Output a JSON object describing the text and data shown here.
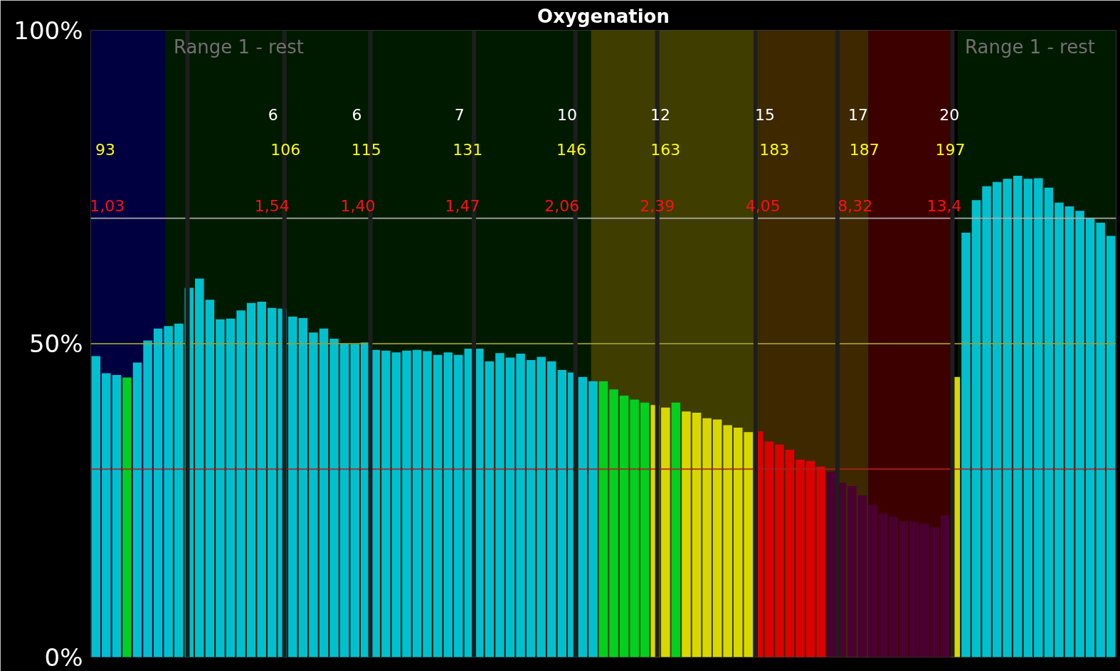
{
  "chart_data": {
    "type": "bar",
    "title": "Oxygenation",
    "categories": [
      null,
      null,
      null,
      null,
      null,
      null,
      null,
      null,
      null,
      null,
      null,
      null,
      null,
      null,
      null,
      null,
      null,
      null,
      null,
      null,
      null,
      null,
      null,
      null,
      null,
      null,
      null,
      null,
      null,
      null,
      null,
      null,
      null,
      null,
      null,
      null,
      null,
      null,
      null,
      null,
      null,
      null,
      null,
      null,
      null,
      null,
      null,
      null,
      null,
      null,
      null,
      null,
      null,
      null,
      null,
      null,
      null,
      null,
      null,
      null,
      null,
      null,
      null,
      null,
      null,
      null,
      null,
      null,
      null,
      null,
      null,
      null,
      null,
      null,
      null,
      null,
      null,
      null,
      null,
      null,
      null,
      null,
      null,
      null,
      null,
      null,
      null,
      null,
      null,
      null,
      null,
      null,
      null,
      null,
      null,
      null,
      null,
      null,
      null
    ],
    "values": [
      48,
      45.3,
      45,
      44.6,
      47,
      50.5,
      52.4,
      52.8,
      53.2,
      58.9,
      60.4,
      57,
      53.9,
      54,
      55.3,
      56.5,
      56.7,
      55.7,
      55.6,
      54.3,
      54.1,
      51.8,
      52.4,
      50.8,
      50,
      49.9,
      50.2,
      49,
      48.9,
      48.6,
      48.9,
      49,
      48.8,
      48.2,
      48.6,
      48.2,
      49.2,
      49.2,
      47.2,
      48.5,
      47.8,
      48.4,
      47.4,
      47.9,
      47.2,
      45.8,
      45.4,
      44.7,
      44,
      44,
      42.7,
      41.7,
      41.1,
      40.6,
      40.2,
      39.8,
      40.6,
      39.2,
      39,
      38.1,
      37.9,
      37,
      36.6,
      35.9,
      36,
      34.4,
      33.9,
      33.1,
      31.5,
      31.3,
      30.4,
      29.6,
      27.8,
      27.3,
      25.8,
      24.3,
      22.9,
      22.4,
      21.7,
      21.6,
      21.3,
      20.7,
      22.6,
      44.7,
      67.7,
      72.9,
      75.1,
      75.8,
      76.3,
      76.8,
      76.3,
      76.4,
      74.9,
      72.5,
      71.9,
      71.2,
      70,
      69.3,
      67.2
    ],
    "colors": [
      "#00c0d0",
      "#00c0d0",
      "#00c0d0",
      "#00d020",
      "#00c0d0",
      "#00c0d0",
      "#00c0d0",
      "#00c0d0",
      "#00c0d0",
      "#00c0d0",
      "#00c0d0",
      "#00c0d0",
      "#00c0d0",
      "#00c0d0",
      "#00c0d0",
      "#00c0d0",
      "#00c0d0",
      "#00c0d0",
      "#00c0d0",
      "#00c0d0",
      "#00c0d0",
      "#00c0d0",
      "#00c0d0",
      "#00c0d0",
      "#00c0d0",
      "#00c0d0",
      "#00c0d0",
      "#00c0d0",
      "#00c0d0",
      "#00c0d0",
      "#00c0d0",
      "#00c0d0",
      "#00c0d0",
      "#00c0d0",
      "#00c0d0",
      "#00c0d0",
      "#00c0d0",
      "#00c0d0",
      "#00c0d0",
      "#00c0d0",
      "#00c0d0",
      "#00c0d0",
      "#00c0d0",
      "#00c0d0",
      "#00c0d0",
      "#00c0d0",
      "#00c0d0",
      "#00c0d0",
      "#00c0d0",
      "#00d020",
      "#00d020",
      "#00d020",
      "#00d020",
      "#00d020",
      "#d8d800",
      "#d8d800",
      "#00d020",
      "#d8d800",
      "#d8d800",
      "#d8d800",
      "#d8d800",
      "#d8d800",
      "#d8d800",
      "#d8d800",
      "#dd0000",
      "#dd0000",
      "#dd0000",
      "#dd0000",
      "#dd0000",
      "#dd0000",
      "#dd0000",
      "#4a0030",
      "#4a0030",
      "#4a0030",
      "#4a0030",
      "#4a0030",
      "#4a0030",
      "#4a0030",
      "#4a0030",
      "#4a0030",
      "#4a0030",
      "#4a0030",
      "#4a0030",
      "#d8d800",
      "#00c0d0",
      "#00c0d0",
      "#00c0d0",
      "#00c0d0",
      "#00c0d0",
      "#00c0d0",
      "#00c0d0",
      "#00c0d0",
      "#00c0d0",
      "#00c0d0",
      "#00c0d0",
      "#00c0d0",
      "#00c0d0",
      "#00c0d0",
      "#00c0d0"
    ],
    "ylim": [
      0,
      100
    ],
    "yticks": [
      {
        "value": 0,
        "label": "0%"
      },
      {
        "value": 50,
        "label": "50%"
      },
      {
        "value": 100,
        "label": "100%"
      }
    ],
    "tick_labels": "y",
    "grid": false,
    "ref_lines": [
      {
        "axis": "y",
        "value": 70,
        "label": null,
        "color": "#b0b0b0"
      },
      {
        "axis": "y",
        "value": 50,
        "label": null,
        "color": "#a0a030"
      },
      {
        "axis": "y",
        "value": 30,
        "label": null,
        "color": "#b02020"
      }
    ],
    "annotations": [
      "Range 1 - rest",
      "Range 1 - rest",
      "93",
      "1,03",
      "6",
      "106",
      "1,54",
      "6",
      "115",
      "1,40",
      "7",
      "131",
      "1,47",
      "10",
      "146",
      "2,06",
      "12",
      "163",
      "2,39",
      "15",
      "183",
      "4,05",
      "17",
      "187",
      "8,32",
      "20",
      "197",
      "13,4"
    ]
  }
}
